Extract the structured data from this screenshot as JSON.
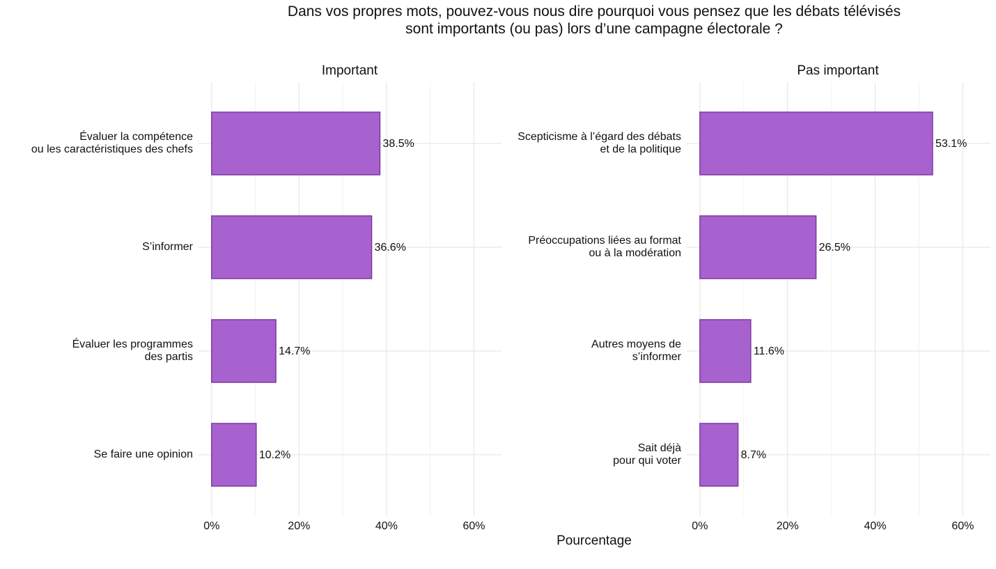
{
  "title": "Dans vos propres mots, pouvez-vous nous dire pourquoi vous pensez que les débats télévisés\nsont importants (ou pas) lors d’une campagne électorale ?",
  "xlabel": "Pourcentage",
  "chart_data": [
    {
      "type": "barh",
      "title": "Important",
      "categories": [
        "Évaluer la compétence\nou les caractéristiques des chefs",
        "S’informer",
        "Évaluer les programmes\ndes partis",
        "Se faire une opinion"
      ],
      "values": [
        38.5,
        36.6,
        14.7,
        10.2
      ],
      "value_labels": [
        "38.5%",
        "36.6%",
        "14.7%",
        "10.2%"
      ],
      "color": "#a862cf",
      "edgecolor": "#7b3a9e",
      "xlim": [
        -3,
        66.3
      ],
      "xticks": [
        {
          "value": 0,
          "label": "0%"
        },
        {
          "value": 20,
          "label": "20%"
        },
        {
          "value": 40,
          "label": "40%"
        },
        {
          "value": 60,
          "label": "60%"
        }
      ],
      "minor_xticks": [
        10,
        30,
        50
      ],
      "grid": true
    },
    {
      "type": "barh",
      "title": "Pas important",
      "categories": [
        "Scepticisme à l’égard des débats\net de la politique",
        "Préoccupations liées au format\nou à la modération",
        "Autres moyens de\ns’informer",
        "Sait déjà\npour qui voter"
      ],
      "values": [
        53.1,
        26.5,
        11.6,
        8.7
      ],
      "value_labels": [
        "53.1%",
        "26.5%",
        "11.6%",
        "8.7%"
      ],
      "color": "#a862cf",
      "edgecolor": "#7b3a9e",
      "xlim": [
        -3,
        66.3
      ],
      "xticks": [
        {
          "value": 0,
          "label": "0%"
        },
        {
          "value": 20,
          "label": "20%"
        },
        {
          "value": 40,
          "label": "40%"
        },
        {
          "value": 60,
          "label": "60%"
        }
      ],
      "minor_xticks": [
        10,
        30,
        50
      ],
      "grid": true
    }
  ]
}
